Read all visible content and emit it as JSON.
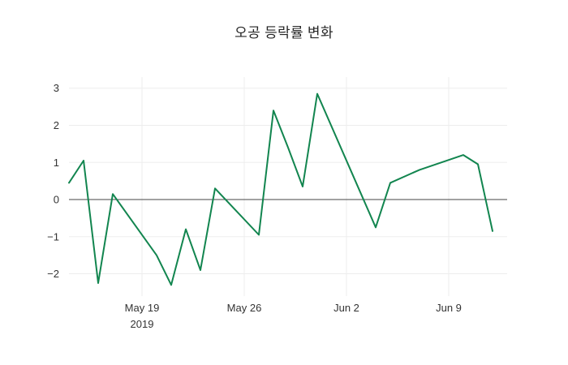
{
  "chart": {
    "title": "오공 등락률 변화",
    "colors": {
      "line": "#12854f",
      "zero_line": "#444444",
      "grid": "#ededed",
      "tick_text": "#333333",
      "title_text": "#262626",
      "background": "#ffffff"
    }
  },
  "chart_data": {
    "type": "line",
    "title": "오공 등락률 변화",
    "x": [
      "2019-05-14",
      "2019-05-15",
      "2019-05-16",
      "2019-05-17",
      "2019-05-20",
      "2019-05-21",
      "2019-05-22",
      "2019-05-23",
      "2019-05-24",
      "2019-05-27",
      "2019-05-28",
      "2019-05-29",
      "2019-05-30",
      "2019-05-31",
      "2019-06-03",
      "2019-06-04",
      "2019-06-05",
      "2019-06-07",
      "2019-06-10",
      "2019-06-11",
      "2019-06-12"
    ],
    "y": [
      0.45,
      1.05,
      -2.25,
      0.15,
      -1.5,
      -2.3,
      -0.8,
      -1.9,
      0.3,
      -0.95,
      2.4,
      1.4,
      0.35,
      2.85,
      0.15,
      -0.75,
      0.45,
      0.8,
      1.2,
      0.95,
      -0.85
    ],
    "xlabel": "",
    "ylabel": "",
    "xlim": [
      "2019-05-14",
      "2019-06-13"
    ],
    "ylim": [
      -2.6,
      3.3
    ],
    "yticks": [
      {
        "value": 3,
        "label": "3"
      },
      {
        "value": 2,
        "label": "2"
      },
      {
        "value": 1,
        "label": "1"
      },
      {
        "value": 0,
        "label": "0"
      },
      {
        "value": -1,
        "label": "−1"
      },
      {
        "value": -2,
        "label": "−2"
      }
    ],
    "xticks": [
      {
        "date": "2019-05-19",
        "label": "May 19",
        "sublabel": "2019"
      },
      {
        "date": "2019-05-26",
        "label": "May 26"
      },
      {
        "date": "2019-06-02",
        "label": "Jun 2"
      },
      {
        "date": "2019-06-09",
        "label": "Jun 9"
      }
    ],
    "grid": true,
    "zero_line": true,
    "legend": false,
    "line_width": 2
  }
}
